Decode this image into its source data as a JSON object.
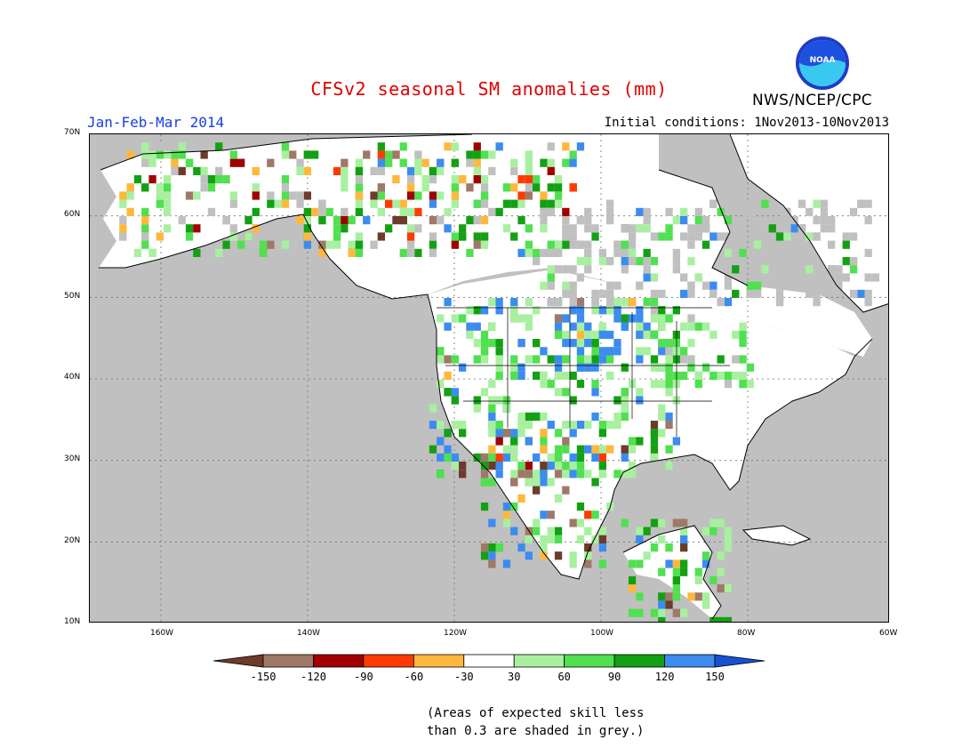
{
  "header": {
    "title": "CFSv2 seasonal SM anomalies (mm)",
    "period": "Jan-Feb-Mar 2014",
    "initial_conditions": "Initial conditions: 1Nov2013-10Nov2013",
    "agency": "NWS/NCEP/CPC",
    "logo_text": "NOAA"
  },
  "map": {
    "lat_labels": [
      "70N",
      "60N",
      "50N",
      "40N",
      "30N",
      "20N",
      "10N"
    ],
    "lon_labels": [
      "160W",
      "140W",
      "120W",
      "100W",
      "80W",
      "60W"
    ],
    "colors": {
      "land": "#ffffff",
      "ocean_no_skill": "#c0c0c0",
      "grid": "#707070"
    }
  },
  "legend": {
    "labels": [
      "-150",
      "-120",
      "-90",
      "-60",
      "-30",
      "30",
      "60",
      "90",
      "120",
      "150"
    ],
    "colors": [
      "#6e3a2a",
      "#a07868",
      "#a00000",
      "#ff3a00",
      "#ffb83c",
      "#ffffff",
      "#a8f0a0",
      "#50e050",
      "#14a014",
      "#3c8cf0",
      "#1850d0"
    ]
  },
  "footnote": {
    "line1": "(Areas of expected skill less",
    "line2": "than 0.3 are shaded in grey.)"
  }
}
